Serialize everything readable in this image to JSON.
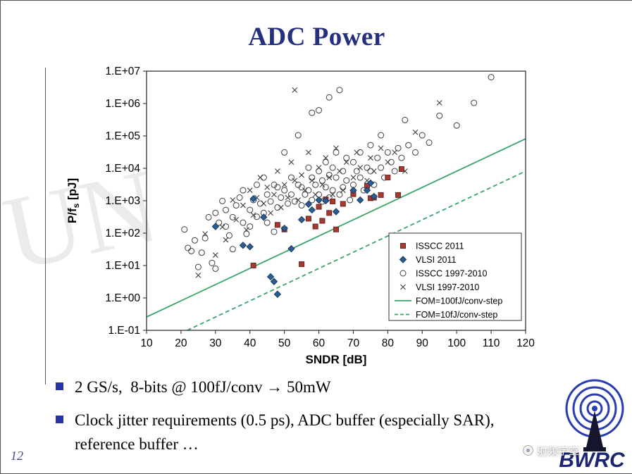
{
  "slide": {
    "title": "ADC Power",
    "page_number": "12",
    "bullets": [
      {
        "text": "2 GS/s,  8-bits @ 100fJ/conv → 50mW"
      },
      {
        "text": "Clock jitter requirements (0.5 ps), ADC buffer (especially SAR), reference buffer …"
      }
    ],
    "watermark_text": "射频学堂",
    "logo_text": "BWRC",
    "faint_watermark": "UN"
  },
  "colors": {
    "title": "#242f7e",
    "bullet_marker": "#2733a3",
    "fom_line": "#3aa568",
    "isscc2011": "#a43a32",
    "vlsi2011": "#2a5e94",
    "open_marker": "#3f3f3f",
    "logo_blue": "#2a3db0",
    "logo_navy": "#1b2670"
  },
  "chart_data": {
    "type": "scatter",
    "title": "",
    "xlabel": "SNDR [dB]",
    "ylabel": "P/f_s [pJ]",
    "xlim": [
      10,
      120
    ],
    "ylim": [
      0.1,
      10000000
    ],
    "y_scale": "log",
    "grid": false,
    "legend_position": "bottom-right",
    "x_ticks": [
      10,
      20,
      30,
      40,
      50,
      60,
      70,
      80,
      90,
      100,
      110,
      120
    ],
    "y_ticks": [
      {
        "v": 10000000,
        "label": "1.E+07"
      },
      {
        "v": 1000000,
        "label": "1.E+06"
      },
      {
        "v": 100000,
        "label": "1.E+05"
      },
      {
        "v": 10000,
        "label": "1.E+04"
      },
      {
        "v": 1000,
        "label": "1.E+03"
      },
      {
        "v": 100,
        "label": "1.E+02"
      },
      {
        "v": 10,
        "label": "1.E+01"
      },
      {
        "v": 1,
        "label": "1.E+00"
      },
      {
        "v": 0.1,
        "label": "1.E-01"
      }
    ],
    "series": [
      {
        "name": "ISSCC 2011",
        "marker": "square",
        "color": "#a43a32",
        "edge": "#6e241f",
        "points": [
          [
            41,
            10
          ],
          [
            48,
            180
          ],
          [
            50,
            130
          ],
          [
            55,
            11
          ],
          [
            57,
            280
          ],
          [
            59,
            160
          ],
          [
            60,
            650
          ],
          [
            61,
            240
          ],
          [
            62,
            1100
          ],
          [
            63,
            420
          ],
          [
            64,
            950
          ],
          [
            65,
            130
          ],
          [
            67,
            800
          ],
          [
            70,
            1600
          ],
          [
            74,
            2900
          ],
          [
            75,
            1200
          ],
          [
            76,
            1250
          ],
          [
            78,
            1500
          ],
          [
            80,
            5200
          ],
          [
            83,
            1500
          ],
          [
            84,
            9500
          ]
        ]
      },
      {
        "name": "VLSI 2011",
        "marker": "diamond",
        "color": "#2a5e94",
        "edge": "#1a3a5c",
        "points": [
          [
            30,
            160
          ],
          [
            38,
            42
          ],
          [
            40,
            38
          ],
          [
            41,
            1150
          ],
          [
            44,
            310
          ],
          [
            46,
            4.5
          ],
          [
            47,
            3.2
          ],
          [
            48,
            1.3
          ],
          [
            50,
            140
          ],
          [
            52,
            33
          ],
          [
            55,
            260
          ],
          [
            57,
            780
          ],
          [
            58,
            520
          ],
          [
            60,
            1050
          ],
          [
            62,
            1000
          ],
          [
            65,
            460
          ],
          [
            70,
            2100
          ],
          [
            72,
            1050
          ],
          [
            74,
            2100
          ],
          [
            75,
            3500
          ],
          [
            76,
            1350
          ]
        ]
      },
      {
        "name": "ISSCC 1997-2010",
        "marker": "circle",
        "color": "#3f3f3f",
        "edge": "#3f3f3f",
        "points": [
          [
            21,
            130
          ],
          [
            22,
            35
          ],
          [
            23,
            28
          ],
          [
            24,
            60
          ],
          [
            25,
            9
          ],
          [
            26,
            25
          ],
          [
            27,
            70
          ],
          [
            28,
            310
          ],
          [
            29,
            12
          ],
          [
            30,
            8
          ],
          [
            30,
            420
          ],
          [
            31,
            210
          ],
          [
            32,
            980
          ],
          [
            33,
            160
          ],
          [
            33,
            520
          ],
          [
            34,
            85
          ],
          [
            35,
            310
          ],
          [
            35,
            32
          ],
          [
            36,
            720
          ],
          [
            37,
            1250
          ],
          [
            38,
            210
          ],
          [
            38,
            2100
          ],
          [
            39,
            95
          ],
          [
            40,
            520
          ],
          [
            40,
            160
          ],
          [
            41,
            1050
          ],
          [
            42,
            320
          ],
          [
            42,
            3100
          ],
          [
            43,
            820
          ],
          [
            44,
            420
          ],
          [
            44,
            5200
          ],
          [
            45,
            1550
          ],
          [
            45,
            210
          ],
          [
            46,
            950
          ],
          [
            47,
            3100
          ],
          [
            47,
            110
          ],
          [
            48,
            2600
          ],
          [
            48,
            620
          ],
          [
            49,
            1250
          ],
          [
            50,
            2100
          ],
          [
            50,
            31000
          ],
          [
            51,
            820
          ],
          [
            52,
            5200
          ],
          [
            52,
            1550
          ],
          [
            53,
            950
          ],
          [
            54,
            3100
          ],
          [
            54,
            105000
          ],
          [
            55,
            2600
          ],
          [
            55,
            720
          ],
          [
            56,
            1550
          ],
          [
            57,
            10500
          ],
          [
            57,
            2100
          ],
          [
            58,
            5200
          ],
          [
            58,
            1050
          ],
          [
            58,
            520000
          ],
          [
            59,
            3100
          ],
          [
            60,
            8200
          ],
          [
            60,
            1550
          ],
          [
            60,
            620000
          ],
          [
            61,
            4200
          ],
          [
            61,
            950
          ],
          [
            62,
            15500
          ],
          [
            62,
            2600
          ],
          [
            63,
            6200
          ],
          [
            63,
            1250
          ],
          [
            63,
            1550000
          ],
          [
            64,
            10500
          ],
          [
            64,
            2100
          ],
          [
            65,
            31000
          ],
          [
            65,
            5200
          ],
          [
            66,
            1550
          ],
          [
            66,
            2600000
          ],
          [
            67,
            8200
          ],
          [
            67,
            2600
          ],
          [
            68,
            21000
          ],
          [
            68,
            4200
          ],
          [
            69,
            1050
          ],
          [
            70,
            15500
          ],
          [
            70,
            3100
          ],
          [
            71,
            8200
          ],
          [
            72,
            31000
          ],
          [
            72,
            5200
          ],
          [
            73,
            2100
          ],
          [
            74,
            10500
          ],
          [
            75,
            52000
          ],
          [
            75,
            8200
          ],
          [
            76,
            3100
          ],
          [
            77,
            21000
          ],
          [
            78,
            105000
          ],
          [
            78,
            10500
          ],
          [
            79,
            5200
          ],
          [
            80,
            31000
          ],
          [
            81,
            15500
          ],
          [
            82,
            8200
          ],
          [
            83,
            42000
          ],
          [
            84,
            21000
          ],
          [
            85,
            310000
          ],
          [
            86,
            52000
          ],
          [
            88,
            31000
          ],
          [
            90,
            105000
          ],
          [
            92,
            62000
          ],
          [
            95,
            420000
          ],
          [
            100,
            210000
          ],
          [
            105,
            1050000
          ],
          [
            110,
            6500000
          ]
        ]
      },
      {
        "name": "VLSI 1997-2010",
        "marker": "x",
        "color": "#3f3f3f",
        "edge": "#3f3f3f",
        "points": [
          [
            25,
            5
          ],
          [
            27,
            95
          ],
          [
            30,
            21
          ],
          [
            32,
            155
          ],
          [
            33,
            62
          ],
          [
            35,
            1050
          ],
          [
            36,
            260
          ],
          [
            38,
            720
          ],
          [
            39,
            125
          ],
          [
            40,
            2100
          ],
          [
            41,
            360
          ],
          [
            42,
            1250
          ],
          [
            43,
            5200
          ],
          [
            44,
            820
          ],
          [
            45,
            2600
          ],
          [
            46,
            420
          ],
          [
            47,
            1550
          ],
          [
            48,
            8200
          ],
          [
            49,
            620
          ],
          [
            50,
            3100
          ],
          [
            51,
            1250
          ],
          [
            52,
            15500
          ],
          [
            53,
            2600000
          ],
          [
            53,
            4200
          ],
          [
            54,
            1050
          ],
          [
            55,
            6200
          ],
          [
            56,
            2100
          ],
          [
            57,
            31000
          ],
          [
            58,
            4200
          ],
          [
            59,
            1550
          ],
          [
            60,
            10500
          ],
          [
            61,
            3100
          ],
          [
            62,
            21000
          ],
          [
            63,
            5200
          ],
          [
            64,
            1550
          ],
          [
            65,
            42000
          ],
          [
            66,
            8200
          ],
          [
            67,
            2100
          ],
          [
            68,
            15500
          ],
          [
            70,
            5200
          ],
          [
            71,
            31000
          ],
          [
            72,
            10500
          ],
          [
            74,
            4200
          ],
          [
            75,
            21000
          ],
          [
            76,
            8200
          ],
          [
            78,
            42000
          ],
          [
            80,
            15500
          ],
          [
            82,
            31000
          ],
          [
            85,
            8200
          ],
          [
            88,
            130000
          ],
          [
            95,
            1050000
          ]
        ]
      }
    ],
    "lines": [
      {
        "name": "FOM=100fJ/conv-step",
        "style": "solid",
        "color": "#3aa568",
        "points": [
          [
            10,
            0.258
          ],
          [
            120,
            81600
          ]
        ]
      },
      {
        "name": "FOM=10fJ/conv-step",
        "style": "dashed",
        "color": "#3aa568",
        "points": [
          [
            21.8,
            0.1
          ],
          [
            120,
            8160
          ]
        ]
      }
    ]
  }
}
